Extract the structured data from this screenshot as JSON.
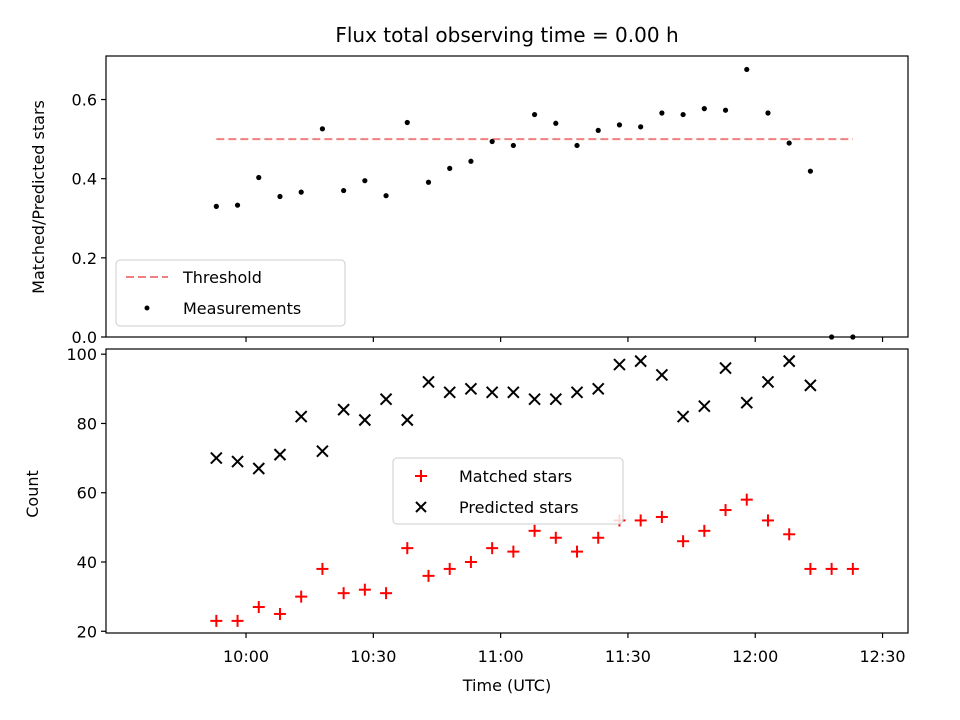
{
  "chart_data": [
    {
      "type": "scatter",
      "title": "Flux total observing time = 0.00 h",
      "xlabel": "",
      "ylabel": "Matched/Predicted stars",
      "ylim": [
        0.0,
        0.71
      ],
      "yticks": [
        0.0,
        0.2,
        0.4,
        0.6
      ],
      "ytick_labels": [
        "0.0",
        "0.2",
        "0.4",
        "0.6"
      ],
      "xlim_minutes": [
        567,
        756
      ],
      "legend": {
        "placement": "lower-left"
      },
      "threshold": {
        "name": "Threshold",
        "y": 0.5,
        "x_minutes": [
          593,
          743
        ],
        "color": "#f08080"
      },
      "series": [
        {
          "name": "Measurements",
          "color": "#000000",
          "marker": "point",
          "x_minutes": [
            593,
            598,
            603,
            608,
            613,
            618,
            623,
            628,
            633,
            638,
            643,
            648,
            653,
            658,
            663,
            668,
            673,
            678,
            683,
            688,
            693,
            698,
            703,
            708,
            713,
            718,
            723,
            728,
            733,
            738,
            743
          ],
          "values": [
            0.33,
            0.333,
            0.403,
            0.355,
            0.366,
            0.526,
            0.37,
            0.395,
            0.357,
            0.542,
            0.391,
            0.426,
            0.444,
            0.494,
            0.484,
            0.562,
            0.54,
            0.484,
            0.522,
            0.536,
            0.531,
            0.566,
            0.562,
            0.577,
            0.573,
            0.676,
            0.566,
            0.49,
            0.419,
            0.0,
            0.0
          ]
        }
      ]
    },
    {
      "type": "scatter",
      "title": "",
      "xlabel": "Time (UTC)",
      "ylabel": "Count",
      "ylim": [
        19.5,
        101.5
      ],
      "yticks": [
        20,
        40,
        60,
        80,
        100
      ],
      "ytick_labels": [
        "20",
        "40",
        "60",
        "80",
        "100"
      ],
      "xlim_minutes": [
        567,
        756
      ],
      "xticks_minutes": [
        600,
        630,
        660,
        690,
        720,
        750
      ],
      "xtick_labels": [
        "10:00",
        "10:30",
        "11:00",
        "11:30",
        "12:00",
        "12:30"
      ],
      "legend": {
        "placement": "center"
      },
      "series": [
        {
          "name": "Matched stars",
          "color": "#ff0000",
          "marker": "plus",
          "x_minutes": [
            593,
            598,
            603,
            608,
            613,
            618,
            623,
            628,
            633,
            638,
            643,
            648,
            653,
            658,
            663,
            668,
            673,
            678,
            683,
            688,
            693,
            698,
            703,
            708,
            713,
            718,
            723,
            728,
            733,
            738,
            743
          ],
          "values": [
            23,
            23,
            27,
            25,
            30,
            38,
            31,
            32,
            31,
            44,
            36,
            38,
            40,
            44,
            43,
            49,
            47,
            43,
            47,
            52,
            52,
            53,
            46,
            49,
            55,
            58,
            52,
            48,
            38,
            38,
            38
          ]
        },
        {
          "name": "Predicted stars",
          "color": "#000000",
          "marker": "x",
          "x_minutes": [
            593,
            598,
            603,
            608,
            613,
            618,
            623,
            628,
            633,
            638,
            643,
            648,
            653,
            658,
            663,
            668,
            673,
            678,
            683,
            688,
            693,
            698,
            703,
            708,
            713,
            718,
            723,
            728,
            733
          ],
          "values": [
            70,
            69,
            67,
            71,
            82,
            72,
            84,
            81,
            87,
            81,
            92,
            89,
            90,
            89,
            89,
            87,
            87,
            89,
            90,
            97,
            98,
            94,
            82,
            85,
            96,
            86,
            92,
            98,
            91
          ]
        }
      ]
    }
  ]
}
